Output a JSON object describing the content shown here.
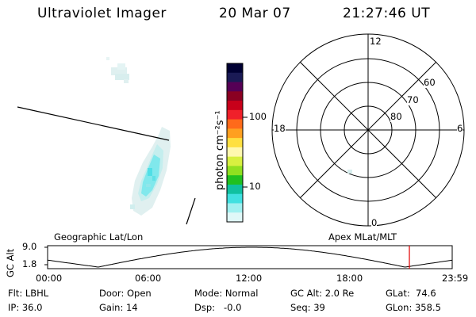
{
  "header": {
    "title": "Ultraviolet Imager",
    "date": "20 Mar 07",
    "time": "21:27:46 UT"
  },
  "colorbar": {
    "label": "photon cm⁻²s⁻¹",
    "tick_labels": [
      "100",
      "10"
    ],
    "colors": [
      "#000033",
      "#1a1a55",
      "#550055",
      "#8a0022",
      "#c8001a",
      "#f0202a",
      "#ff6a1a",
      "#ffa020",
      "#ffe040",
      "#fff8b0",
      "#d8f040",
      "#90e020",
      "#20c020",
      "#10c0a0",
      "#40e0e0",
      "#a0f0f0",
      "#e0f8f8"
    ]
  },
  "polar_plot": {
    "mlt_labels": {
      "top": "12",
      "bottom": "0",
      "left": "18",
      "right": "6"
    },
    "lat_labels": [
      "60",
      "70",
      "80"
    ]
  },
  "alt_panel": {
    "left_label": "Geographic Lat/Lon",
    "right_label": "Apex MLat/MLT",
    "y_axis_label": "GC Alt",
    "y_ticks": [
      "9.0",
      "1.8"
    ],
    "x_ticks": [
      "00:00",
      "06:00",
      "12:00",
      "18:00",
      "23:59"
    ],
    "current_time_hours": 21.46
  },
  "info": {
    "flt": "Flt: LBHL",
    "ip": "IP: 36.0",
    "door": "Door: Open",
    "gain": "Gain: 14",
    "mode": "Mode: Normal",
    "dsp": "Dsp:   -0.0",
    "gc_alt": "GC Alt: 2.0 Re",
    "seq": "Seq: 39",
    "glat": "GLat:  74.6",
    "glon": "GLon: 358.5"
  }
}
